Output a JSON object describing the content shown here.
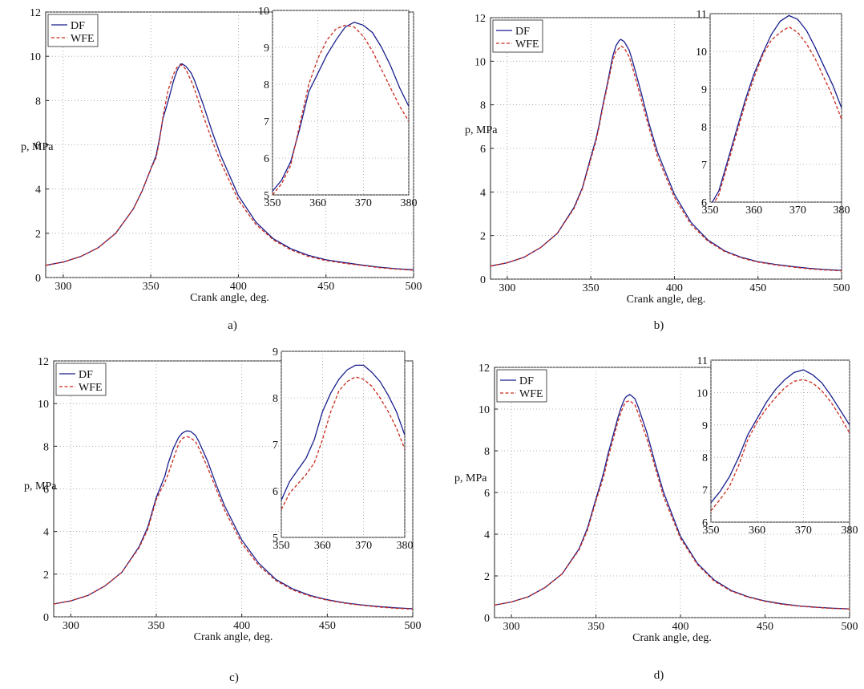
{
  "colors": {
    "df": "#1a1f8c",
    "wfe": "#cc2a1e",
    "grid": "#9a9a9a",
    "axis": "#222222"
  },
  "panel_labels": [
    "a)",
    "b)",
    "c)",
    "d)"
  ],
  "chart_data": [
    {
      "type": "line",
      "panel": "a)",
      "xlabel": "Crank angle, deg.",
      "ylabel": "p, MPa",
      "xlim": [
        290,
        500
      ],
      "ylim": [
        0,
        12
      ],
      "xticks": [
        300,
        350,
        400,
        450,
        500
      ],
      "yticks": [
        0,
        2,
        4,
        6,
        8,
        10,
        12
      ],
      "legend": [
        "DF",
        "WFE"
      ],
      "legend_position": "top-left",
      "grid": true,
      "series": [
        {
          "name": "DF",
          "style": "solid",
          "x": [
            290,
            300,
            310,
            320,
            330,
            340,
            345,
            350,
            353,
            355,
            357,
            360,
            363,
            365,
            367,
            368,
            370,
            373,
            375,
            380,
            385,
            390,
            400,
            410,
            420,
            430,
            440,
            450,
            460,
            470,
            480,
            490,
            500
          ],
          "y": [
            0.55,
            0.7,
            0.95,
            1.35,
            2.0,
            3.1,
            3.9,
            4.9,
            5.5,
            6.3,
            7.2,
            8.0,
            8.9,
            9.35,
            9.65,
            9.65,
            9.55,
            9.25,
            8.9,
            7.8,
            6.6,
            5.5,
            3.7,
            2.5,
            1.75,
            1.3,
            1.0,
            0.8,
            0.68,
            0.57,
            0.47,
            0.4,
            0.35
          ]
        },
        {
          "name": "WFE",
          "style": "dashed",
          "x": [
            290,
            300,
            310,
            320,
            330,
            340,
            345,
            350,
            353,
            355,
            357,
            360,
            363,
            365,
            367,
            368,
            370,
            373,
            375,
            380,
            385,
            390,
            400,
            410,
            420,
            430,
            440,
            450,
            460,
            470,
            480,
            490,
            500
          ],
          "y": [
            0.55,
            0.7,
            0.95,
            1.35,
            2.0,
            3.1,
            3.9,
            4.9,
            5.4,
            6.2,
            7.3,
            8.5,
            9.2,
            9.5,
            9.6,
            9.6,
            9.4,
            8.9,
            8.5,
            7.3,
            6.2,
            5.2,
            3.5,
            2.4,
            1.7,
            1.25,
            0.95,
            0.77,
            0.65,
            0.55,
            0.45,
            0.38,
            0.33
          ]
        }
      ],
      "inset": {
        "xlim": [
          350,
          380
        ],
        "ylim": [
          5,
          10
        ],
        "xticks": [
          350,
          360,
          370,
          380
        ],
        "yticks": [
          5,
          6,
          7,
          8,
          9,
          10
        ],
        "series": [
          {
            "name": "DF",
            "x": [
              350,
              352,
              354,
              356,
              358,
              360,
              362,
              364,
              366,
              368,
              370,
              372,
              374,
              376,
              378,
              380
            ],
            "y": [
              5.1,
              5.4,
              5.9,
              6.8,
              7.8,
              8.3,
              8.8,
              9.2,
              9.55,
              9.68,
              9.6,
              9.4,
              9.0,
              8.5,
              7.9,
              7.4
            ]
          },
          {
            "name": "WFE",
            "x": [
              350,
              352,
              354,
              356,
              358,
              360,
              362,
              364,
              366,
              368,
              370,
              372,
              374,
              376,
              378,
              380
            ],
            "y": [
              5.0,
              5.3,
              5.8,
              6.9,
              8.0,
              8.7,
              9.2,
              9.5,
              9.6,
              9.55,
              9.3,
              8.9,
              8.4,
              7.9,
              7.4,
              7.0
            ]
          }
        ]
      }
    },
    {
      "type": "line",
      "panel": "b)",
      "xlabel": "Crank angle, deg.",
      "ylabel": "p, MPa",
      "xlim": [
        290,
        500
      ],
      "ylim": [
        0,
        12
      ],
      "xticks": [
        300,
        350,
        400,
        450,
        500
      ],
      "yticks": [
        0,
        2,
        4,
        6,
        8,
        10,
        12
      ],
      "legend": [
        "DF",
        "WFE"
      ],
      "legend_position": "top-left",
      "grid": true,
      "series": [
        {
          "name": "DF",
          "style": "solid",
          "x": [
            290,
            300,
            310,
            320,
            330,
            340,
            345,
            350,
            353,
            355,
            357,
            360,
            363,
            365,
            367,
            368,
            370,
            373,
            375,
            380,
            385,
            390,
            400,
            410,
            420,
            430,
            440,
            450,
            460,
            470,
            480,
            490,
            500
          ],
          "y": [
            0.6,
            0.75,
            1.0,
            1.45,
            2.1,
            3.3,
            4.2,
            5.6,
            6.4,
            7.1,
            7.9,
            9.0,
            10.2,
            10.7,
            10.95,
            11.0,
            10.9,
            10.5,
            10.0,
            8.6,
            7.1,
            5.8,
            3.9,
            2.6,
            1.8,
            1.3,
            1.0,
            0.8,
            0.68,
            0.58,
            0.5,
            0.44,
            0.4
          ]
        },
        {
          "name": "WFE",
          "style": "dashed",
          "x": [
            290,
            300,
            310,
            320,
            330,
            340,
            345,
            350,
            353,
            355,
            357,
            360,
            363,
            365,
            367,
            368,
            370,
            373,
            375,
            380,
            385,
            390,
            400,
            410,
            420,
            430,
            440,
            450,
            460,
            470,
            480,
            490,
            500
          ],
          "y": [
            0.6,
            0.75,
            1.0,
            1.45,
            2.1,
            3.25,
            4.15,
            5.5,
            6.3,
            7.0,
            7.8,
            8.9,
            10.0,
            10.45,
            10.6,
            10.7,
            10.6,
            10.2,
            9.7,
            8.3,
            6.9,
            5.6,
            3.75,
            2.5,
            1.75,
            1.27,
            0.97,
            0.78,
            0.66,
            0.56,
            0.48,
            0.42,
            0.38
          ]
        }
      ],
      "inset": {
        "xlim": [
          350,
          380
        ],
        "ylim": [
          6,
          11
        ],
        "xticks": [
          350,
          360,
          370,
          380
        ],
        "yticks": [
          6,
          7,
          8,
          9,
          10,
          11
        ],
        "series": [
          {
            "name": "DF",
            "x": [
              350,
              352,
              354,
              356,
              358,
              360,
              362,
              364,
              366,
              368,
              370,
              372,
              374,
              376,
              378,
              380
            ],
            "y": [
              5.9,
              6.3,
              7.1,
              7.9,
              8.7,
              9.4,
              9.95,
              10.45,
              10.8,
              10.95,
              10.85,
              10.55,
              10.1,
              9.6,
              9.1,
              8.5
            ]
          },
          {
            "name": "WFE",
            "x": [
              350,
              352,
              354,
              356,
              358,
              360,
              362,
              364,
              366,
              368,
              370,
              372,
              374,
              376,
              378,
              380
            ],
            "y": [
              5.8,
              6.2,
              7.0,
              7.8,
              8.6,
              9.3,
              9.9,
              10.3,
              10.5,
              10.65,
              10.5,
              10.2,
              9.8,
              9.3,
              8.8,
              8.2
            ]
          }
        ]
      }
    },
    {
      "type": "line",
      "panel": "c)",
      "xlabel": "Crank angle, deg.",
      "ylabel": "p, MPa",
      "xlim": [
        290,
        500
      ],
      "ylim": [
        0,
        12
      ],
      "xticks": [
        300,
        350,
        400,
        450,
        500
      ],
      "yticks": [
        0,
        2,
        4,
        6,
        8,
        10,
        12
      ],
      "legend": [
        "DF",
        "WFE"
      ],
      "legend_position": "top-left",
      "grid": true,
      "series": [
        {
          "name": "DF",
          "style": "solid",
          "x": [
            290,
            300,
            310,
            320,
            330,
            340,
            345,
            350,
            353,
            355,
            357,
            360,
            363,
            365,
            367,
            368,
            370,
            373,
            375,
            380,
            385,
            390,
            400,
            410,
            420,
            430,
            440,
            450,
            460,
            470,
            480,
            490,
            500
          ],
          "y": [
            0.6,
            0.75,
            1.0,
            1.45,
            2.1,
            3.3,
            4.2,
            5.6,
            6.2,
            6.6,
            7.2,
            7.9,
            8.4,
            8.6,
            8.7,
            8.72,
            8.7,
            8.5,
            8.2,
            7.3,
            6.2,
            5.2,
            3.6,
            2.5,
            1.75,
            1.3,
            1.0,
            0.8,
            0.66,
            0.56,
            0.48,
            0.42,
            0.38
          ]
        },
        {
          "name": "WFE",
          "style": "dashed",
          "x": [
            290,
            300,
            310,
            320,
            330,
            340,
            345,
            350,
            353,
            355,
            357,
            360,
            363,
            365,
            367,
            368,
            370,
            373,
            375,
            380,
            385,
            390,
            400,
            410,
            420,
            430,
            440,
            450,
            460,
            470,
            480,
            490,
            500
          ],
          "y": [
            0.6,
            0.75,
            1.0,
            1.45,
            2.1,
            3.25,
            4.1,
            5.5,
            6.0,
            6.3,
            6.7,
            7.4,
            8.1,
            8.35,
            8.45,
            8.45,
            8.4,
            8.2,
            7.9,
            7.0,
            6.0,
            5.0,
            3.45,
            2.4,
            1.7,
            1.25,
            0.97,
            0.78,
            0.64,
            0.54,
            0.46,
            0.4,
            0.36
          ]
        }
      ],
      "inset": {
        "xlim": [
          350,
          380
        ],
        "ylim": [
          5,
          9
        ],
        "xticks": [
          350,
          360,
          370,
          380
        ],
        "yticks": [
          5,
          6,
          7,
          8,
          9
        ],
        "series": [
          {
            "name": "DF",
            "x": [
              350,
              352,
              354,
              356,
              358,
              360,
              362,
              364,
              366,
              368,
              370,
              372,
              374,
              376,
              378,
              380
            ],
            "y": [
              5.8,
              6.2,
              6.45,
              6.7,
              7.1,
              7.7,
              8.1,
              8.4,
              8.6,
              8.7,
              8.7,
              8.55,
              8.35,
              8.05,
              7.7,
              7.2
            ]
          },
          {
            "name": "WFE",
            "x": [
              350,
              352,
              354,
              356,
              358,
              360,
              362,
              364,
              366,
              368,
              370,
              372,
              374,
              376,
              378,
              380
            ],
            "y": [
              5.6,
              5.95,
              6.15,
              6.35,
              6.6,
              7.1,
              7.7,
              8.15,
              8.35,
              8.45,
              8.4,
              8.25,
              8.0,
              7.7,
              7.35,
              6.9
            ]
          }
        ]
      }
    },
    {
      "type": "line",
      "panel": "d)",
      "xlabel": "Crank angle, deg.",
      "ylabel": "p, MPa",
      "xlim": [
        290,
        500
      ],
      "ylim": [
        0,
        12
      ],
      "xticks": [
        300,
        350,
        400,
        450,
        500
      ],
      "yticks": [
        0,
        2,
        4,
        6,
        8,
        10,
        12
      ],
      "legend": [
        "DF",
        "WFE"
      ],
      "legend_position": "top-left",
      "grid": true,
      "series": [
        {
          "name": "DF",
          "style": "solid",
          "x": [
            290,
            300,
            310,
            320,
            330,
            340,
            345,
            350,
            353,
            355,
            357,
            360,
            363,
            365,
            367,
            368,
            370,
            373,
            375,
            380,
            385,
            390,
            400,
            410,
            420,
            430,
            440,
            450,
            460,
            470,
            480,
            490,
            500
          ],
          "y": [
            0.6,
            0.75,
            1.0,
            1.45,
            2.1,
            3.3,
            4.3,
            5.7,
            6.5,
            7.1,
            7.8,
            8.7,
            9.6,
            10.1,
            10.5,
            10.6,
            10.7,
            10.5,
            10.1,
            8.9,
            7.4,
            6.0,
            3.9,
            2.6,
            1.8,
            1.3,
            1.0,
            0.8,
            0.66,
            0.56,
            0.5,
            0.45,
            0.42
          ]
        },
        {
          "name": "WFE",
          "style": "dashed",
          "x": [
            290,
            300,
            310,
            320,
            330,
            340,
            345,
            350,
            353,
            355,
            357,
            360,
            363,
            365,
            367,
            368,
            370,
            373,
            375,
            380,
            385,
            390,
            400,
            410,
            420,
            430,
            440,
            450,
            460,
            470,
            480,
            490,
            500
          ],
          "y": [
            0.6,
            0.75,
            1.0,
            1.45,
            2.1,
            3.25,
            4.2,
            5.6,
            6.35,
            6.9,
            7.6,
            8.5,
            9.4,
            9.9,
            10.25,
            10.35,
            10.4,
            10.2,
            9.8,
            8.6,
            7.2,
            5.8,
            3.8,
            2.55,
            1.75,
            1.27,
            0.98,
            0.78,
            0.64,
            0.55,
            0.49,
            0.44,
            0.41
          ]
        }
      ],
      "inset": {
        "xlim": [
          350,
          380
        ],
        "ylim": [
          6,
          11
        ],
        "xticks": [
          350,
          360,
          370,
          380
        ],
        "yticks": [
          6,
          7,
          8,
          9,
          10,
          11
        ],
        "series": [
          {
            "name": "DF",
            "x": [
              350,
              352,
              354,
              356,
              358,
              360,
              362,
              364,
              366,
              368,
              370,
              372,
              374,
              376,
              378,
              380
            ],
            "y": [
              6.6,
              6.95,
              7.4,
              8.0,
              8.7,
              9.2,
              9.7,
              10.1,
              10.4,
              10.62,
              10.7,
              10.55,
              10.3,
              9.9,
              9.45,
              9.0
            ]
          },
          {
            "name": "WFE",
            "x": [
              350,
              352,
              354,
              356,
              358,
              360,
              362,
              364,
              366,
              368,
              370,
              372,
              374,
              376,
              378,
              380
            ],
            "y": [
              6.35,
              6.7,
              7.1,
              7.75,
              8.55,
              9.1,
              9.5,
              9.85,
              10.15,
              10.35,
              10.4,
              10.3,
              10.05,
              9.7,
              9.25,
              8.75
            ]
          }
        ]
      }
    }
  ]
}
